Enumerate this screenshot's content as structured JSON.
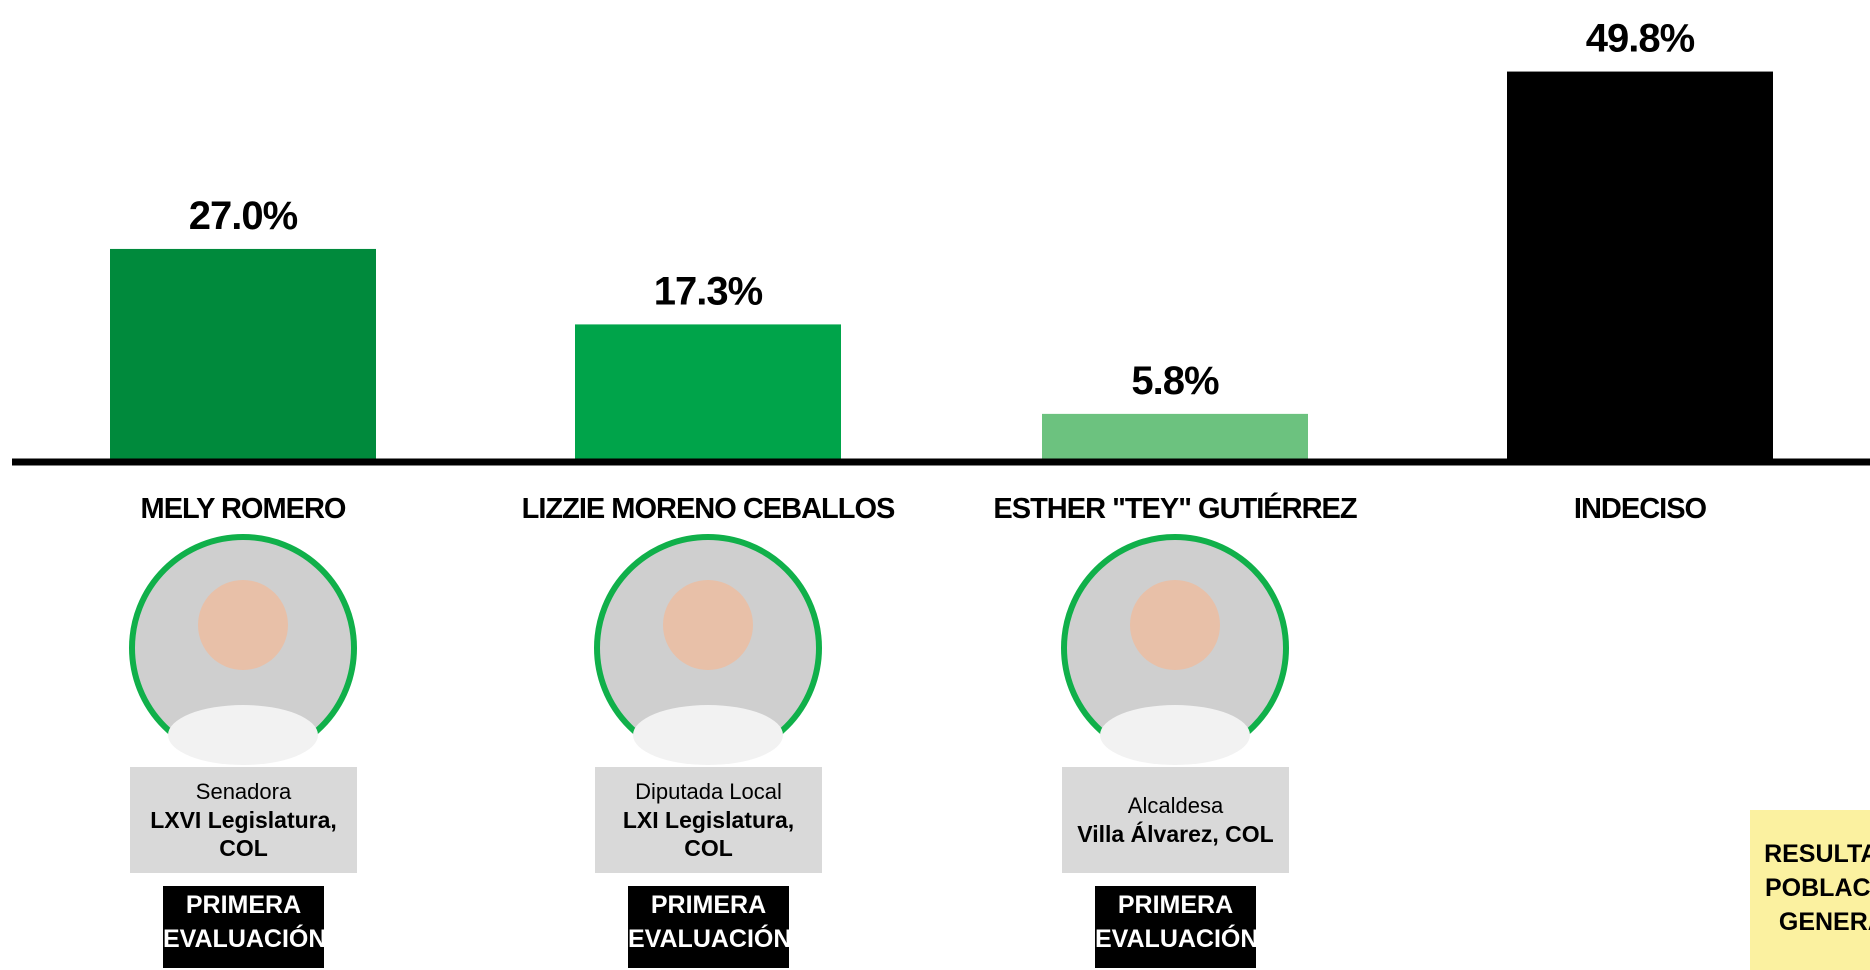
{
  "chart_data": {
    "type": "bar",
    "categories": [
      "MELY ROMERO",
      "LIZZIE MORENO CEBALLOS",
      "ESTHER \"TEY\" GUTIÉRREZ",
      "INDECISO"
    ],
    "values": [
      27.0,
      17.3,
      5.8,
      49.8
    ],
    "value_labels": [
      "27.0%",
      "17.3%",
      "5.8%",
      "49.8%"
    ],
    "colors": [
      "#008a3c",
      "#00a44a",
      "#6cc27f",
      "#000000"
    ],
    "ylim": [
      0,
      50
    ]
  },
  "candidates": [
    {
      "role": "Senadora",
      "office": "LXVI Legislatura, COL",
      "badge": "PRIMERA EVALUACIÓN"
    },
    {
      "role": "Diputada Local",
      "office": "LXI Legislatura, COL",
      "badge": "PRIMERA EVALUACIÓN"
    },
    {
      "role": "Alcaldesa",
      "office": "Villa Álvarez, COL",
      "badge": "PRIMERA EVALUACIÓN"
    }
  ],
  "note": "RESULTADO POBLACIÓN GENERAL"
}
